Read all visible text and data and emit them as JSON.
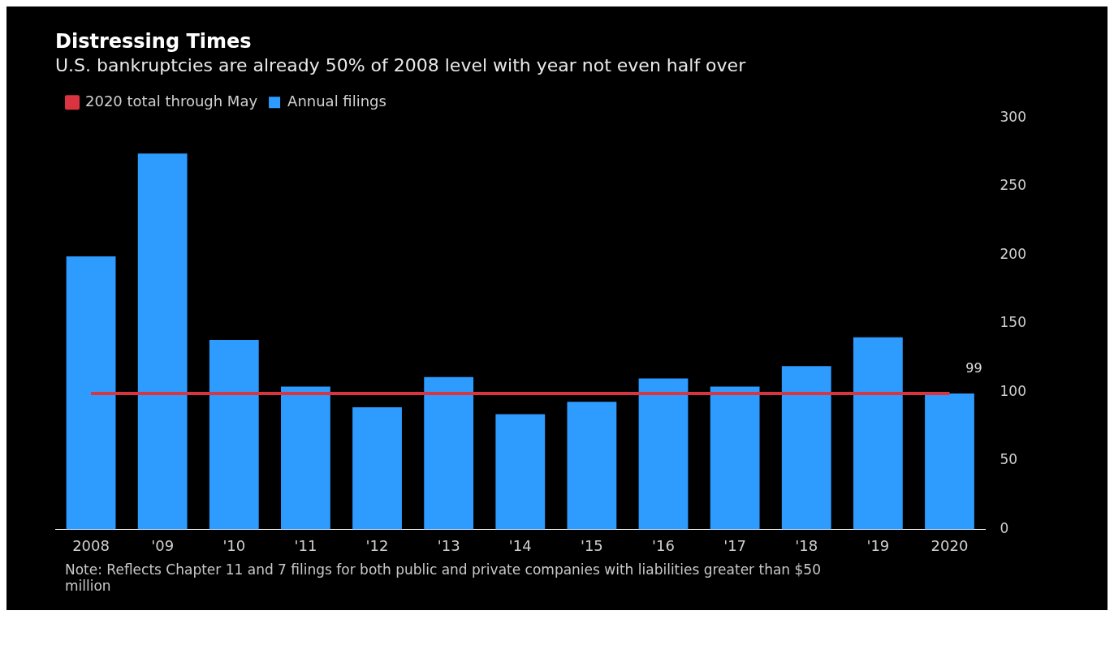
{
  "chart_data": {
    "type": "bar",
    "title": "Distressing Times",
    "subtitle": "U.S. bankruptcies are already 50% of 2008 level with year not even half over",
    "categories": [
      "2008",
      "'09",
      "'10",
      "'11",
      "'12",
      "'13",
      "'14",
      "'15",
      "'16",
      "'17",
      "'18",
      "'19",
      "2020"
    ],
    "series": [
      {
        "name": "Annual filings",
        "color": "#2e9bff",
        "values": [
          199,
          274,
          138,
          104,
          89,
          111,
          84,
          93,
          110,
          104,
          119,
          140,
          99
        ],
        "value_labels": [
          null,
          null,
          null,
          null,
          null,
          null,
          null,
          null,
          null,
          null,
          null,
          null,
          "99"
        ]
      },
      {
        "name": "2020 total through May",
        "type": "line",
        "color": "#d9343f",
        "values": [
          99,
          99,
          99,
          99,
          99,
          99,
          99,
          99,
          99,
          99,
          99,
          99,
          99
        ]
      }
    ],
    "marker": "none",
    "ylim": [
      0,
      300
    ],
    "yticks": [
      0,
      50,
      100,
      150,
      200,
      250,
      300
    ],
    "grid": false,
    "legend": "top left",
    "annotations": [
      "Note: Reflects Chapter 11 and 7 filings for both public and private companies with liabilities greater than $50 million"
    ]
  }
}
